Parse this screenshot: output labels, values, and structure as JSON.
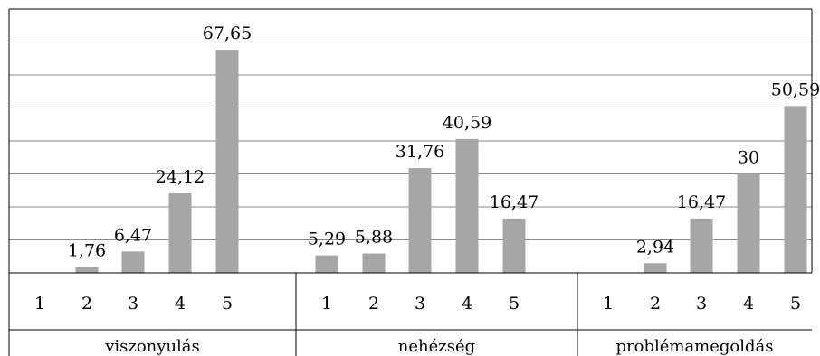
{
  "chart_data": {
    "type": "bar",
    "title": "",
    "xlabel": "",
    "ylabel": "",
    "ylim": [
      0,
      80
    ],
    "grid": true,
    "legend": "none",
    "bar_color": "#a6a6a6",
    "groups": [
      {
        "name": "viszonyulás",
        "categories": [
          "1",
          "2",
          "3",
          "4",
          "5"
        ],
        "values": [
          0,
          1.76,
          6.47,
          24.12,
          67.65
        ],
        "labels": [
          "",
          "1,76",
          "6,47",
          "24,12",
          "67,65"
        ]
      },
      {
        "name": "nehézség",
        "categories": [
          "1",
          "2",
          "3",
          "4",
          "5"
        ],
        "values": [
          5.29,
          5.88,
          31.76,
          40.59,
          16.47
        ],
        "labels": [
          "5,29",
          "5,88",
          "31,76",
          "40,59",
          "16,47"
        ]
      },
      {
        "name": "problémamegoldás",
        "categories": [
          "1",
          "2",
          "3",
          "4",
          "5"
        ],
        "values": [
          0,
          2.94,
          16.47,
          30,
          50.59
        ],
        "labels": [
          "",
          "2,94",
          "16,47",
          "30",
          "50,59"
        ]
      }
    ]
  }
}
